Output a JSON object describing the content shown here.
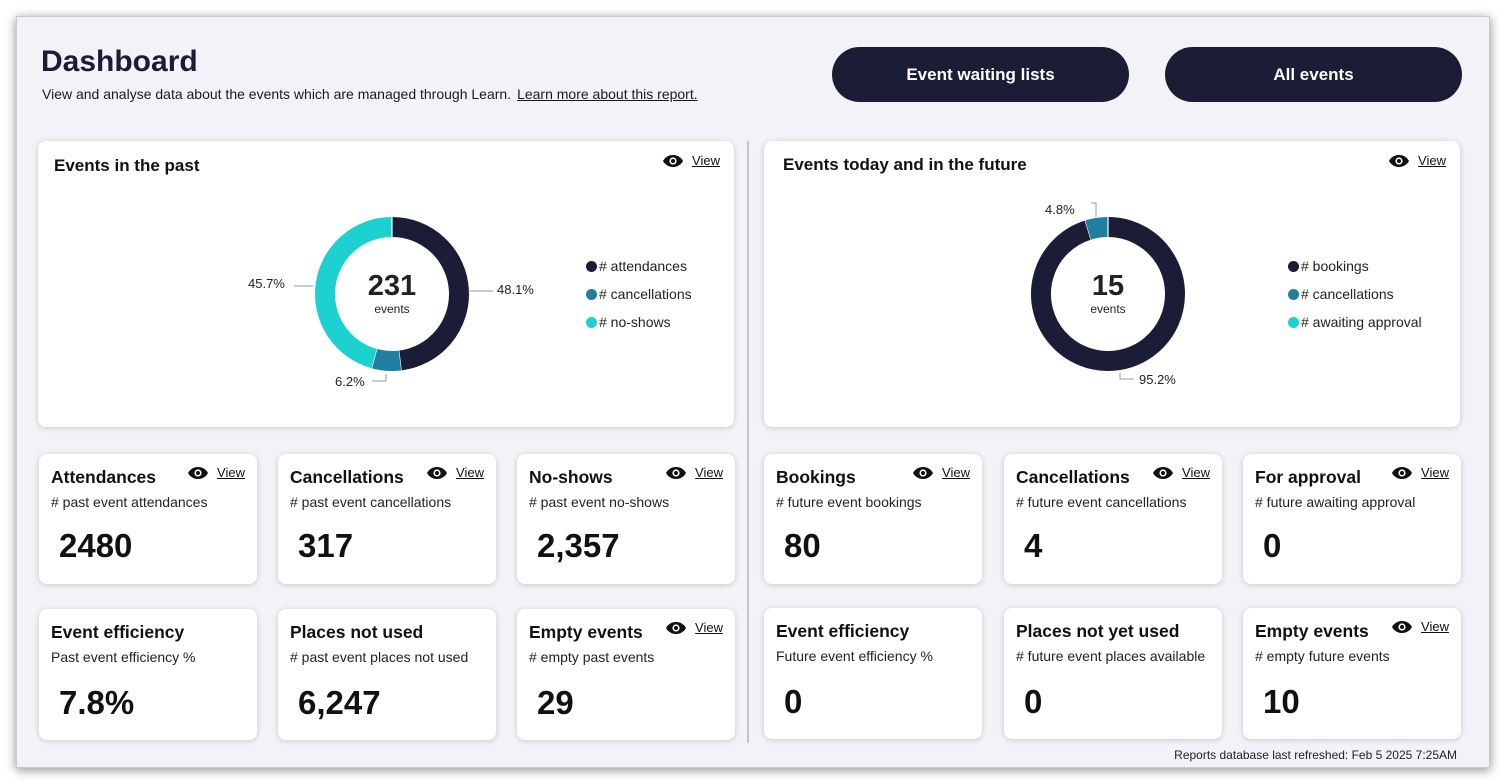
{
  "header": {
    "title": "Dashboard",
    "subtitle": "View and analyse data about the events which are managed through Learn.",
    "learn_more": "Learn more about this report."
  },
  "buttons": {
    "waiting_lists": "Event waiting lists",
    "all_events": "All events"
  },
  "view_label": "View",
  "colors": {
    "navy": "#1b1c35",
    "blue": "#1f7fa0",
    "cyan": "#1dd1d1"
  },
  "past_chart": {
    "title": "Events in the past",
    "center_value": "231",
    "center_label": "events",
    "chart_data": {
      "type": "pie",
      "categories": [
        "# attendances",
        "# cancellations",
        "# no-shows"
      ],
      "values": [
        48.1,
        6.2,
        45.7
      ],
      "labels": [
        "48.1%",
        "6.2%",
        "45.7%"
      ],
      "colors": [
        "#1b1c35",
        "#1f7fa0",
        "#1dd1d1"
      ]
    }
  },
  "future_chart": {
    "title": "Events today and in the future",
    "center_value": "15",
    "center_label": "events",
    "chart_data": {
      "type": "pie",
      "categories": [
        "# bookings",
        "# cancellations",
        "# awaiting approval"
      ],
      "values": [
        95.2,
        4.8,
        0
      ],
      "labels": [
        "95.2%",
        "4.8%",
        ""
      ],
      "colors": [
        "#1b1c35",
        "#1f7fa0",
        "#1dd1d1"
      ]
    }
  },
  "metrics": {
    "attendances": {
      "title": "Attendances",
      "sub": "# past event attendances",
      "value": "2480"
    },
    "past_cancellations": {
      "title": "Cancellations",
      "sub": "# past event cancellations",
      "value": "317"
    },
    "no_shows": {
      "title": "No-shows",
      "sub": "# past event no-shows",
      "value": "2,357"
    },
    "bookings": {
      "title": "Bookings",
      "sub": "# future event bookings",
      "value": "80"
    },
    "future_cancellations": {
      "title": "Cancellations",
      "sub": "# future event cancellations",
      "value": "4"
    },
    "for_approval": {
      "title": "For approval",
      "sub": "# future awaiting approval",
      "value": "0"
    },
    "past_efficiency": {
      "title": "Event efficiency",
      "sub": "Past event efficiency %",
      "value": "7.8%"
    },
    "places_not_used": {
      "title": "Places not used",
      "sub": "# past event places not used",
      "value": "6,247"
    },
    "past_empty": {
      "title": "Empty events",
      "sub": "# empty past events",
      "value": "29"
    },
    "future_efficiency": {
      "title": "Event efficiency",
      "sub": "Future event efficiency %",
      "value": "0"
    },
    "places_not_yet_used": {
      "title": "Places not yet used",
      "sub": "# future event places available",
      "value": "0"
    },
    "future_empty": {
      "title": "Empty events",
      "sub": "# empty future events",
      "value": "10"
    }
  },
  "footer": "Reports database last refreshed: Feb  5 2025  7:25AM"
}
